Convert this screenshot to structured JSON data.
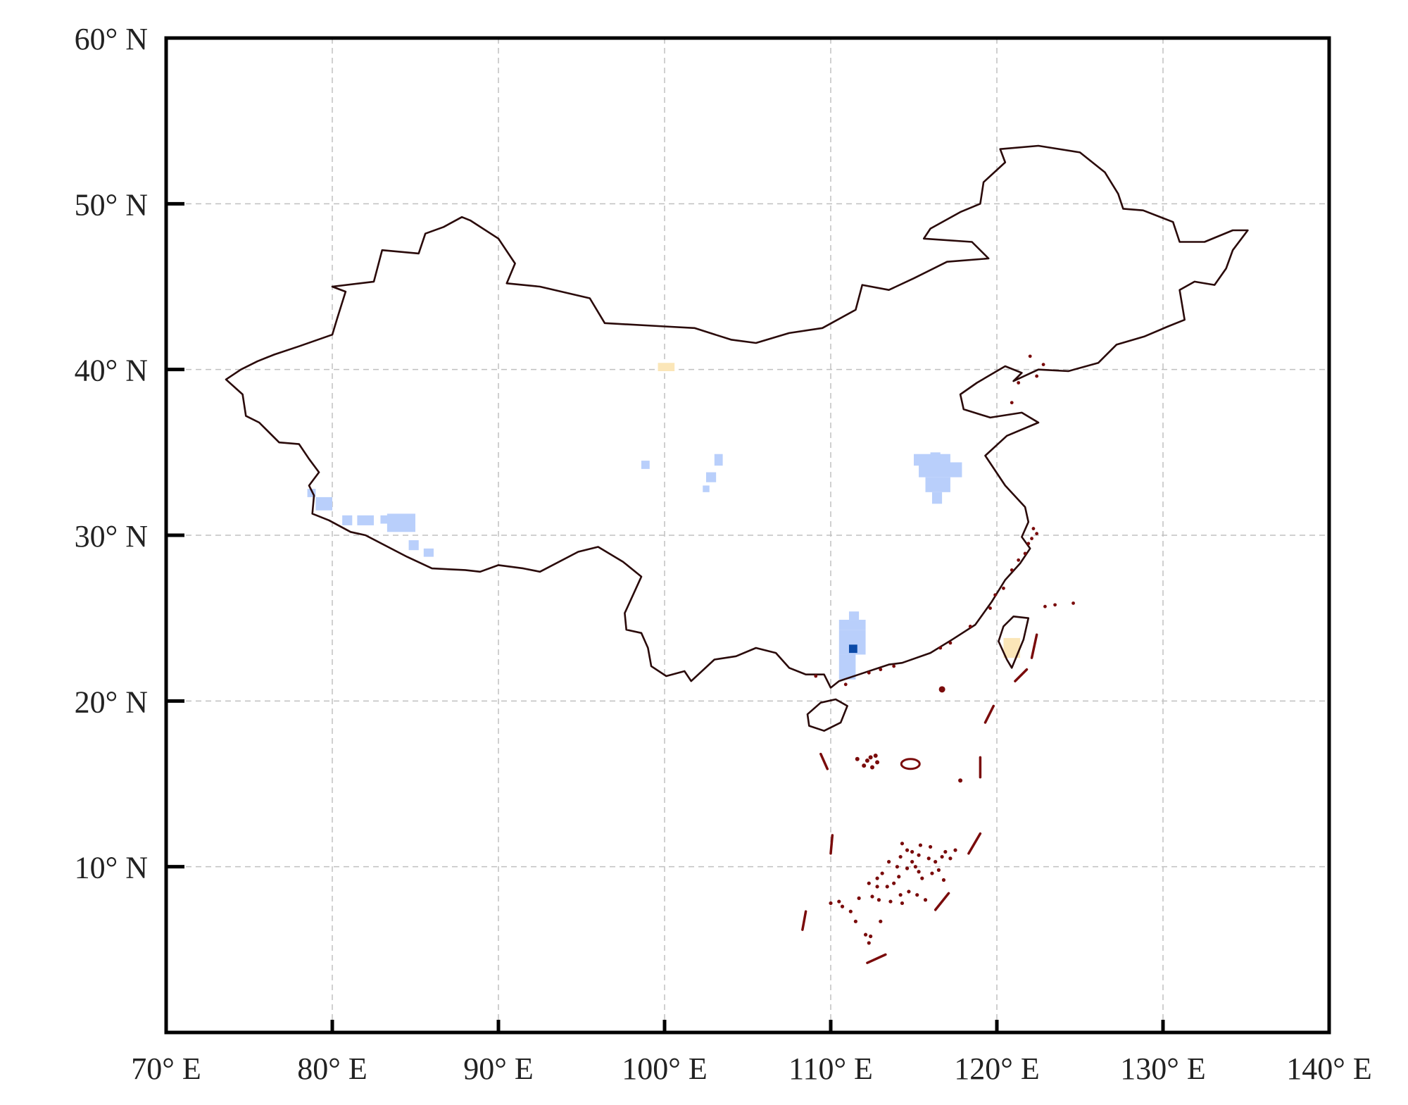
{
  "map": {
    "x_axis": {
      "range": [
        70,
        140
      ],
      "ticks": [
        {
          "value": 70,
          "label": "70° E"
        },
        {
          "value": 80,
          "label": "80° E"
        },
        {
          "value": 90,
          "label": "90° E"
        },
        {
          "value": 100,
          "label": "100° E"
        },
        {
          "value": 110,
          "label": "110° E"
        },
        {
          "value": 120,
          "label": "120° E"
        },
        {
          "value": 130,
          "label": "130° E"
        },
        {
          "value": 140,
          "label": "140° E"
        }
      ]
    },
    "y_axis": {
      "range": [
        0,
        60
      ],
      "ticks": [
        {
          "value": 60,
          "label": "60° N"
        },
        {
          "value": 50,
          "label": "50° N"
        },
        {
          "value": 40,
          "label": "40° N"
        },
        {
          "value": 30,
          "label": "30° N"
        },
        {
          "value": 20,
          "label": "20° N"
        },
        {
          "value": 10,
          "label": "10° N"
        }
      ]
    },
    "grid": true,
    "colors": {
      "frame": "#000000",
      "grid": "#c0c0c0",
      "border": "#2a0a0a",
      "islands": "#7a0b0b",
      "light_blue": "#b9cffb",
      "dark_blue": "#0b4aa8",
      "light_yellow": "#fbe6b8"
    },
    "country_outline": [
      [
        73.6,
        39.4
      ],
      [
        74.5,
        40.0
      ],
      [
        75.5,
        40.5
      ],
      [
        76.5,
        40.9
      ],
      [
        78.0,
        41.4
      ],
      [
        80.0,
        42.1
      ],
      [
        80.3,
        43.1
      ],
      [
        80.8,
        44.7
      ],
      [
        80.0,
        45.0
      ],
      [
        82.5,
        45.3
      ],
      [
        83.0,
        47.2
      ],
      [
        85.2,
        47.0
      ],
      [
        85.6,
        48.2
      ],
      [
        86.7,
        48.6
      ],
      [
        87.8,
        49.2
      ],
      [
        88.3,
        49.0
      ],
      [
        90.0,
        47.9
      ],
      [
        91.0,
        46.4
      ],
      [
        90.5,
        45.2
      ],
      [
        92.5,
        45.0
      ],
      [
        95.5,
        44.3
      ],
      [
        96.4,
        42.8
      ],
      [
        100.0,
        42.6
      ],
      [
        101.8,
        42.5
      ],
      [
        104.0,
        41.8
      ],
      [
        105.5,
        41.6
      ],
      [
        107.5,
        42.2
      ],
      [
        109.5,
        42.5
      ],
      [
        111.5,
        43.6
      ],
      [
        111.9,
        45.1
      ],
      [
        113.5,
        44.8
      ],
      [
        115.0,
        45.5
      ],
      [
        117.0,
        46.5
      ],
      [
        119.5,
        46.7
      ],
      [
        118.5,
        47.7
      ],
      [
        115.6,
        47.9
      ],
      [
        116.0,
        48.5
      ],
      [
        117.8,
        49.5
      ],
      [
        119.0,
        50.0
      ],
      [
        119.2,
        51.3
      ],
      [
        120.5,
        52.5
      ],
      [
        120.2,
        53.3
      ],
      [
        122.5,
        53.5
      ],
      [
        125.0,
        53.1
      ],
      [
        126.5,
        51.9
      ],
      [
        127.3,
        50.6
      ],
      [
        127.6,
        49.7
      ],
      [
        128.8,
        49.6
      ],
      [
        130.6,
        48.9
      ],
      [
        131.0,
        47.7
      ],
      [
        132.5,
        47.7
      ],
      [
        134.2,
        48.4
      ],
      [
        135.1,
        48.4
      ],
      [
        134.2,
        47.2
      ],
      [
        133.8,
        46.1
      ],
      [
        133.1,
        45.1
      ],
      [
        131.9,
        45.3
      ],
      [
        131.0,
        44.8
      ],
      [
        131.3,
        43.0
      ],
      [
        130.3,
        42.6
      ],
      [
        128.9,
        42.0
      ],
      [
        127.2,
        41.5
      ],
      [
        126.1,
        40.4
      ],
      [
        124.3,
        39.9
      ],
      [
        122.5,
        40.0
      ],
      [
        121.0,
        39.3
      ],
      [
        121.5,
        39.8
      ],
      [
        120.5,
        40.2
      ],
      [
        118.8,
        39.2
      ],
      [
        117.8,
        38.5
      ],
      [
        118.0,
        37.6
      ],
      [
        119.6,
        37.1
      ],
      [
        121.5,
        37.4
      ],
      [
        122.5,
        36.8
      ],
      [
        120.6,
        36.0
      ],
      [
        119.3,
        34.8
      ],
      [
        120.5,
        33.0
      ],
      [
        121.7,
        31.7
      ],
      [
        121.9,
        30.8
      ],
      [
        121.5,
        29.9
      ],
      [
        122.0,
        29.2
      ],
      [
        121.4,
        28.3
      ],
      [
        120.5,
        27.3
      ],
      [
        119.7,
        26.0
      ],
      [
        118.7,
        24.6
      ],
      [
        117.3,
        23.7
      ],
      [
        116.0,
        22.9
      ],
      [
        114.3,
        22.3
      ],
      [
        113.5,
        22.2
      ],
      [
        112.0,
        21.7
      ],
      [
        110.5,
        21.2
      ],
      [
        110.0,
        20.8
      ],
      [
        109.6,
        21.6
      ],
      [
        108.5,
        21.6
      ],
      [
        107.5,
        22.0
      ],
      [
        106.7,
        22.9
      ],
      [
        105.5,
        23.2
      ],
      [
        104.3,
        22.7
      ],
      [
        103.0,
        22.5
      ],
      [
        101.6,
        21.2
      ],
      [
        101.2,
        21.8
      ],
      [
        100.1,
        21.5
      ],
      [
        99.2,
        22.1
      ],
      [
        99.0,
        23.2
      ],
      [
        98.6,
        24.1
      ],
      [
        97.7,
        24.3
      ],
      [
        97.6,
        25.3
      ],
      [
        98.6,
        27.5
      ],
      [
        97.5,
        28.4
      ],
      [
        96.0,
        29.3
      ],
      [
        94.8,
        29.0
      ],
      [
        92.5,
        27.8
      ],
      [
        91.5,
        28.0
      ],
      [
        90.0,
        28.2
      ],
      [
        88.9,
        27.8
      ],
      [
        88.0,
        27.9
      ],
      [
        86.0,
        28.0
      ],
      [
        84.5,
        28.7
      ],
      [
        82.0,
        30.0
      ],
      [
        81.1,
        30.2
      ],
      [
        79.8,
        30.9
      ],
      [
        78.8,
        31.3
      ],
      [
        78.9,
        32.4
      ],
      [
        78.6,
        33.0
      ],
      [
        79.2,
        33.8
      ],
      [
        78.6,
        34.6
      ],
      [
        78.0,
        35.5
      ],
      [
        76.8,
        35.6
      ],
      [
        75.6,
        36.8
      ],
      [
        74.8,
        37.2
      ],
      [
        74.6,
        38.5
      ],
      [
        73.6,
        39.4
      ]
    ],
    "hainan_outline": [
      [
        108.6,
        19.2
      ],
      [
        109.4,
        19.9
      ],
      [
        110.3,
        20.1
      ],
      [
        111.0,
        19.7
      ],
      [
        110.6,
        18.7
      ],
      [
        109.6,
        18.2
      ],
      [
        108.7,
        18.5
      ],
      [
        108.6,
        19.2
      ]
    ],
    "taiwan_outline": [
      [
        121.0,
        25.1
      ],
      [
        121.9,
        25.0
      ],
      [
        121.6,
        23.7
      ],
      [
        120.9,
        22.0
      ],
      [
        120.6,
        22.5
      ],
      [
        120.1,
        23.6
      ],
      [
        120.4,
        24.5
      ],
      [
        121.0,
        25.1
      ]
    ],
    "nine_dash_line": [
      [
        [
          122.4,
          24.0
        ],
        [
          122.1,
          22.6
        ]
      ],
      [
        [
          121.8,
          21.9
        ],
        [
          121.1,
          21.2
        ]
      ],
      [
        [
          119.8,
          19.7
        ],
        [
          119.3,
          18.7
        ]
      ],
      [
        [
          119.0,
          16.6
        ],
        [
          119.0,
          15.4
        ]
      ],
      [
        [
          119.0,
          12.0
        ],
        [
          118.3,
          10.8
        ]
      ],
      [
        [
          117.1,
          8.4
        ],
        [
          116.3,
          7.4
        ]
      ],
      [
        [
          113.3,
          4.7
        ],
        [
          112.2,
          4.2
        ]
      ],
      [
        [
          108.5,
          7.3
        ],
        [
          108.3,
          6.2
        ]
      ],
      [
        [
          110.1,
          11.9
        ],
        [
          110.0,
          10.8
        ]
      ],
      [
        [
          109.4,
          16.8
        ],
        [
          109.8,
          15.9
        ]
      ]
    ],
    "paracel": [
      [
        112.2,
        16.4
      ],
      [
        112.4,
        16.6
      ],
      [
        112.7,
        16.7
      ],
      [
        112.0,
        16.1
      ],
      [
        112.5,
        16.0
      ],
      [
        112.8,
        16.3
      ],
      [
        111.6,
        16.5
      ]
    ],
    "huangyan": [
      [
        117.8,
        15.2
      ]
    ],
    "pratas": [
      [
        116.7,
        20.7
      ]
    ],
    "spratly_scatter": [
      [
        114.3,
        11.4
      ],
      [
        114.6,
        11.0
      ],
      [
        114.2,
        10.6
      ],
      [
        114.9,
        10.9
      ],
      [
        115.3,
        10.7
      ],
      [
        115.9,
        10.5
      ],
      [
        116.3,
        10.3
      ],
      [
        116.7,
        10.6
      ],
      [
        116.5,
        9.8
      ],
      [
        116.1,
        9.6
      ],
      [
        115.5,
        9.3
      ],
      [
        115.1,
        10.0
      ],
      [
        114.6,
        9.9
      ],
      [
        114.1,
        9.4
      ],
      [
        113.8,
        9.0
      ],
      [
        113.4,
        8.8
      ],
      [
        112.8,
        8.8
      ],
      [
        112.5,
        8.2
      ],
      [
        112.9,
        8.0
      ],
      [
        113.6,
        7.9
      ],
      [
        114.2,
        8.3
      ],
      [
        114.7,
        8.5
      ],
      [
        115.2,
        8.3
      ],
      [
        115.7,
        8.0
      ],
      [
        114.0,
        10.0
      ],
      [
        113.1,
        9.6
      ],
      [
        112.3,
        9.0
      ],
      [
        111.7,
        8.1
      ],
      [
        110.5,
        7.9
      ],
      [
        110.0,
        7.8
      ],
      [
        110.7,
        7.6
      ],
      [
        111.2,
        7.3
      ],
      [
        111.5,
        6.7
      ],
      [
        112.1,
        5.9
      ],
      [
        112.3,
        5.4
      ],
      [
        113.0,
        6.7
      ],
      [
        116.9,
        10.9
      ],
      [
        117.2,
        10.5
      ],
      [
        117.5,
        11.0
      ],
      [
        116.0,
        11.2
      ],
      [
        115.4,
        11.3
      ],
      [
        114.9,
        10.3
      ],
      [
        113.5,
        10.3
      ],
      [
        116.8,
        9.2
      ],
      [
        115.3,
        9.7
      ],
      [
        114.3,
        7.8
      ],
      [
        112.4,
        5.8
      ],
      [
        112.8,
        9.3
      ]
    ],
    "coastal_islands": [
      [
        122.2,
        30.4
      ],
      [
        122.4,
        30.1
      ],
      [
        122.1,
        29.8
      ],
      [
        121.9,
        29.5
      ],
      [
        121.7,
        28.9
      ],
      [
        121.3,
        28.5
      ],
      [
        120.9,
        27.9
      ],
      [
        120.4,
        26.8
      ],
      [
        119.9,
        26.4
      ],
      [
        119.6,
        25.6
      ],
      [
        118.4,
        24.5
      ],
      [
        117.2,
        23.5
      ],
      [
        116.6,
        23.2
      ],
      [
        113.8,
        22.1
      ],
      [
        113.0,
        21.9
      ],
      [
        112.3,
        21.7
      ],
      [
        110.9,
        21.0
      ],
      [
        109.1,
        21.5
      ],
      [
        121.3,
        39.2
      ],
      [
        122.4,
        39.6
      ],
      [
        120.9,
        38.0
      ],
      [
        122.0,
        40.8
      ],
      [
        122.8,
        40.3
      ],
      [
        124.6,
        25.9
      ],
      [
        123.5,
        25.8
      ],
      [
        122.9,
        25.7
      ]
    ],
    "shading": [
      {
        "lon": 78.5,
        "lat": 32.3,
        "w": 0.5,
        "h": 0.5,
        "color": "light_blue"
      },
      {
        "lon": 79.0,
        "lat": 31.5,
        "w": 1.0,
        "h": 0.8,
        "color": "light_blue"
      },
      {
        "lon": 80.6,
        "lat": 30.6,
        "w": 0.6,
        "h": 0.6,
        "color": "light_blue"
      },
      {
        "lon": 81.5,
        "lat": 30.6,
        "w": 1.0,
        "h": 0.6,
        "color": "light_blue"
      },
      {
        "lon": 82.9,
        "lat": 30.7,
        "w": 1.6,
        "h": 0.5,
        "color": "light_blue"
      },
      {
        "lon": 83.3,
        "lat": 30.2,
        "w": 1.7,
        "h": 1.1,
        "color": "light_blue"
      },
      {
        "lon": 84.6,
        "lat": 29.1,
        "w": 0.6,
        "h": 0.6,
        "color": "light_blue"
      },
      {
        "lon": 85.5,
        "lat": 28.7,
        "w": 0.6,
        "h": 0.5,
        "color": "light_blue"
      },
      {
        "lon": 99.6,
        "lat": 39.9,
        "w": 1.0,
        "h": 0.5,
        "color": "light_yellow"
      },
      {
        "lon": 98.6,
        "lat": 34.0,
        "w": 0.5,
        "h": 0.5,
        "color": "light_blue"
      },
      {
        "lon": 103.0,
        "lat": 34.2,
        "w": 0.5,
        "h": 0.7,
        "color": "light_blue"
      },
      {
        "lon": 102.5,
        "lat": 33.2,
        "w": 0.6,
        "h": 0.6,
        "color": "light_blue"
      },
      {
        "lon": 102.3,
        "lat": 32.6,
        "w": 0.4,
        "h": 0.4,
        "color": "light_blue"
      },
      {
        "lon": 115.0,
        "lat": 34.2,
        "w": 2.2,
        "h": 0.7,
        "color": "light_blue"
      },
      {
        "lon": 115.3,
        "lat": 33.5,
        "w": 2.6,
        "h": 0.9,
        "color": "light_blue"
      },
      {
        "lon": 115.7,
        "lat": 32.6,
        "w": 1.5,
        "h": 0.9,
        "color": "light_blue"
      },
      {
        "lon": 116.0,
        "lat": 34.6,
        "w": 0.6,
        "h": 0.4,
        "color": "light_blue"
      },
      {
        "lon": 116.1,
        "lat": 31.9,
        "w": 0.6,
        "h": 0.7,
        "color": "light_blue"
      },
      {
        "lon": 111.1,
        "lat": 24.9,
        "w": 0.6,
        "h": 0.5,
        "color": "light_blue"
      },
      {
        "lon": 110.5,
        "lat": 24.3,
        "w": 1.6,
        "h": 0.6,
        "color": "light_blue"
      },
      {
        "lon": 110.5,
        "lat": 22.8,
        "w": 1.6,
        "h": 1.5,
        "color": "light_blue"
      },
      {
        "lon": 110.5,
        "lat": 21.3,
        "w": 1.0,
        "h": 1.5,
        "color": "light_blue"
      },
      {
        "lon": 111.1,
        "lat": 22.9,
        "w": 0.5,
        "h": 0.5,
        "color": "dark_blue"
      },
      {
        "lon": 120.4,
        "lat": 22.6,
        "w": 1.0,
        "h": 1.2,
        "color": "light_yellow"
      }
    ]
  }
}
